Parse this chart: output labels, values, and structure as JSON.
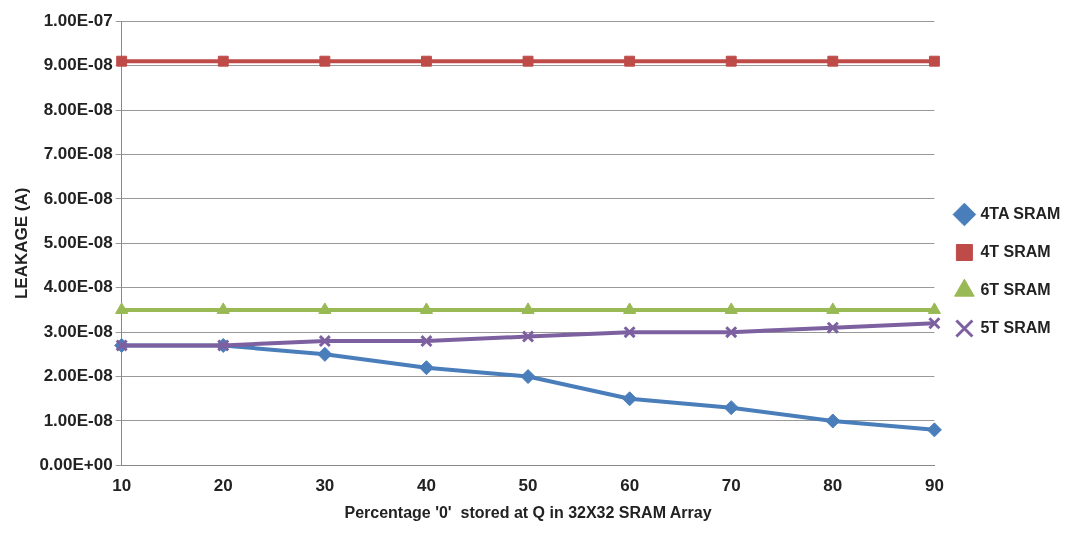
{
  "chart_data": {
    "type": "line",
    "xlabel": "Percentage '0'  stored at Q in 32X32 SRAM Array",
    "ylabel": "LEAKAGE (A)",
    "categories": [
      "10",
      "20",
      "30",
      "40",
      "50",
      "60",
      "70",
      "80",
      "90"
    ],
    "series": [
      {
        "name": "4TA SRAM",
        "color": "#4a7ebb",
        "marker": "diamond",
        "values": [
          2.7e-08,
          2.7e-08,
          2.5e-08,
          2.2e-08,
          2e-08,
          1.5e-08,
          1.3e-08,
          1e-08,
          8e-09
        ]
      },
      {
        "name": "4T SRAM",
        "color": "#be4b48",
        "marker": "square",
        "values": [
          9.1e-08,
          9.1e-08,
          9.1e-08,
          9.1e-08,
          9.1e-08,
          9.1e-08,
          9.1e-08,
          9.1e-08,
          9.1e-08
        ]
      },
      {
        "name": "6T SRAM",
        "color": "#98b954",
        "marker": "triangle",
        "values": [
          3.5e-08,
          3.5e-08,
          3.5e-08,
          3.5e-08,
          3.5e-08,
          3.5e-08,
          3.5e-08,
          3.5e-08,
          3.5e-08
        ]
      },
      {
        "name": "5T SRAM",
        "color": "#7d60a0",
        "marker": "cross",
        "values": [
          2.7e-08,
          2.7e-08,
          2.8e-08,
          2.8e-08,
          2.9e-08,
          3e-08,
          3e-08,
          3.1e-08,
          3.2e-08
        ]
      }
    ],
    "ylim": [
      0,
      1e-07
    ],
    "yticks": [
      {
        "value": 0,
        "label": "0.00E+00"
      },
      {
        "value": 1e-08,
        "label": "1.00E-08"
      },
      {
        "value": 2e-08,
        "label": "2.00E-08"
      },
      {
        "value": 3e-08,
        "label": "3.00E-08"
      },
      {
        "value": 4e-08,
        "label": "4.00E-08"
      },
      {
        "value": 5e-08,
        "label": "5.00E-08"
      },
      {
        "value": 6e-08,
        "label": "6.00E-08"
      },
      {
        "value": 7e-08,
        "label": "7.00E-08"
      },
      {
        "value": 8e-08,
        "label": "8.00E-08"
      },
      {
        "value": 9e-08,
        "label": "9.00E-08"
      },
      {
        "value": 1e-07,
        "label": "1.00E-07"
      }
    ],
    "grid": "y",
    "legend": "right",
    "line_style": "solid"
  }
}
